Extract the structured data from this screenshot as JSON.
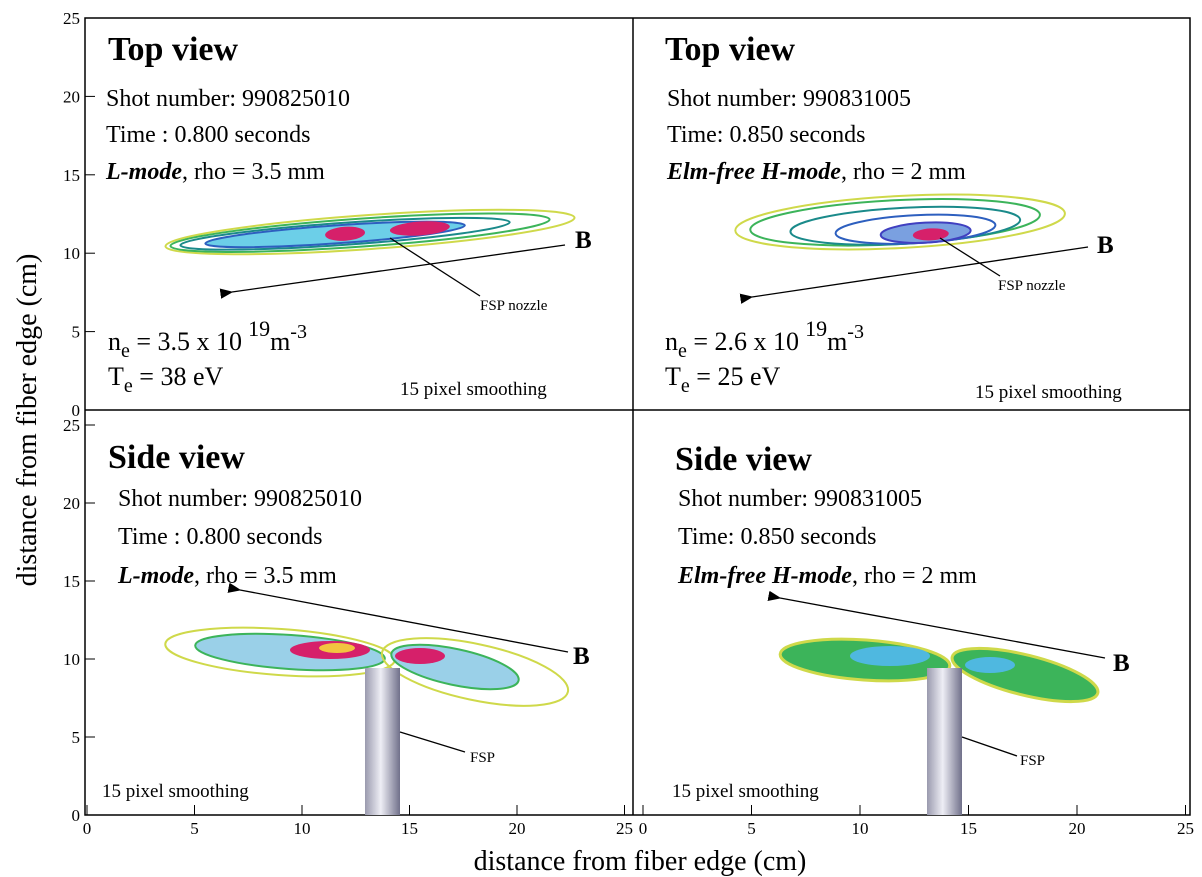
{
  "y_axis_label": "distance from fiber edge (cm)",
  "x_axis_label": "distance from fiber edge (cm)",
  "axes": {
    "top_y_ticks": [
      0,
      5,
      10,
      15,
      20,
      25
    ],
    "bottom_y_ticks": [
      0,
      5,
      10,
      15,
      20,
      25
    ],
    "left_x_ticks": [
      0,
      5,
      10,
      15,
      20,
      25
    ],
    "right_x_ticks": [
      0,
      5,
      10,
      15,
      20,
      25
    ]
  },
  "panels": [
    {
      "title": "Top view",
      "shot": "Shot number: 990825010",
      "time": "Time : 0.800 seconds",
      "regime": "L-mode",
      "regime_rest": ", rho = 3.5 mm",
      "density": {
        "symbol": "n",
        "sub": "e",
        "text": " = 3.5 x 10",
        "exp": "19",
        "unit": "m",
        "unit_exp": "-3"
      },
      "temperature": {
        "symbol": "T",
        "sub": "e",
        "text": " = 38 eV"
      },
      "smoothing": "15 pixel smoothing",
      "field": "B",
      "probe": "FSP nozzle"
    },
    {
      "title": "Top view",
      "shot": "Shot number: 990831005",
      "time": "Time: 0.850 seconds",
      "regime": "Elm-free H-mode",
      "regime_rest": ", rho = 2 mm",
      "density": {
        "symbol": "n",
        "sub": "e",
        "text": " = 2.6 x 10",
        "exp": "19",
        "unit": "m",
        "unit_exp": "-3"
      },
      "temperature": {
        "symbol": "T",
        "sub": "e",
        "text": " = 25 eV"
      },
      "smoothing": "15 pixel smoothing",
      "field": "B",
      "probe": "FSP nozzle"
    },
    {
      "title": "Side view",
      "shot": "Shot number: 990825010",
      "time": "Time : 0.800 seconds",
      "regime": "L-mode",
      "regime_rest": ", rho = 3.5 mm",
      "smoothing": "15 pixel smoothing",
      "field": "B",
      "probe": "FSP"
    },
    {
      "title": "Side view",
      "shot": "Shot number: 990831005",
      "time": "Time: 0.850 seconds",
      "regime": "Elm-free H-mode",
      "regime_rest": ", rho = 2 mm",
      "smoothing": "15 pixel smoothing",
      "field": "B",
      "probe": "FSP"
    }
  ]
}
